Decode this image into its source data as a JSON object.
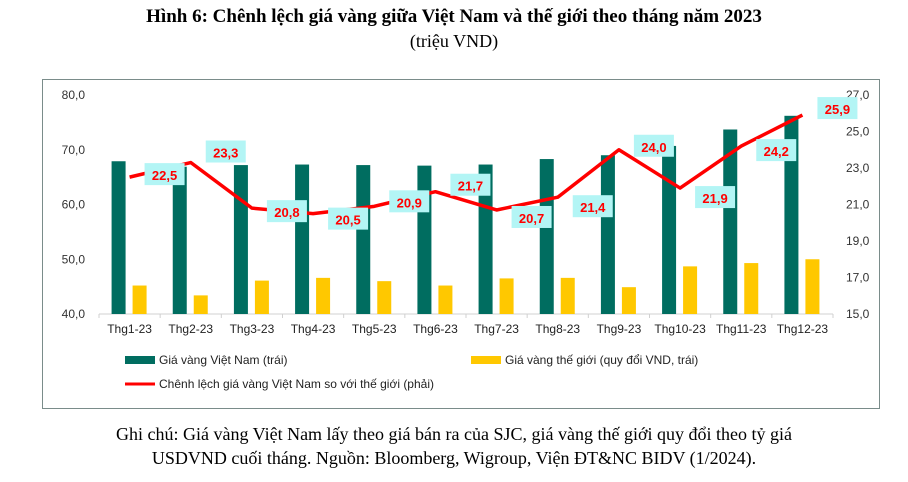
{
  "title": "Hình 6: Chênh lệch giá vàng giữa Việt Nam và thế giới theo tháng năm 2023",
  "subtitle": "(triệu VND)",
  "note_line1": "Ghi chú: Giá vàng Việt Nam lấy theo giá bán ra của SJC, giá vàng thế giới quy đổi theo tỷ giá",
  "note_line2": "USDVND cuối tháng. Nguồn: Bloomberg, Wigroup, Viện ĐT&NC BIDV (1/2024).",
  "chart_data": {
    "type": "bar+line",
    "categories": [
      "Thg1-23",
      "Thg2-23",
      "Thg3-23",
      "Thg4-23",
      "Thg5-23",
      "Thg6-23",
      "Thg7-23",
      "Thg8-23",
      "Thg9-23",
      "Thg10-23",
      "Thg11-23",
      "Thg12-23"
    ],
    "y_left": {
      "range": [
        40,
        80
      ],
      "ticks": [
        "40,0",
        "50,0",
        "60,0",
        "70,0",
        "80,0"
      ]
    },
    "y_right": {
      "range": [
        15,
        27
      ],
      "ticks": [
        "15,0",
        "17,0",
        "19,0",
        "21,0",
        "23,0",
        "25,0",
        "27,0"
      ]
    },
    "series": [
      {
        "name": "Giá vàng Việt Nam (trái)",
        "type": "bar",
        "axis": "left",
        "color": "#006d60",
        "values": [
          67.9,
          66.9,
          67.2,
          67.3,
          67.2,
          67.1,
          67.3,
          68.3,
          69.0,
          70.7,
          73.7,
          76.2
        ]
      },
      {
        "name": "Giá vàng thế giới (quy đổi VND, trái)",
        "type": "bar",
        "axis": "left",
        "color": "#ffc800",
        "values": [
          45.2,
          43.4,
          46.1,
          46.6,
          46.0,
          45.2,
          46.5,
          46.6,
          44.9,
          48.7,
          49.3,
          50.0
        ]
      },
      {
        "name": "Chênh lệch giá vàng Việt Nam so với thế giới (phải)",
        "type": "line",
        "axis": "right",
        "color": "#ff0000",
        "values": [
          22.5,
          23.3,
          20.8,
          20.5,
          20.9,
          21.7,
          20.7,
          21.4,
          24.0,
          21.9,
          24.2,
          25.9
        ],
        "labels": [
          "22,5",
          "23,3",
          "20,8",
          "20,5",
          "20,9",
          "21,7",
          "20,7",
          "21,4",
          "24,0",
          "21,9",
          "24,2",
          "25,9"
        ]
      }
    ],
    "label_bg": "#b3f5f5",
    "grid": false,
    "legend": "bottom"
  }
}
